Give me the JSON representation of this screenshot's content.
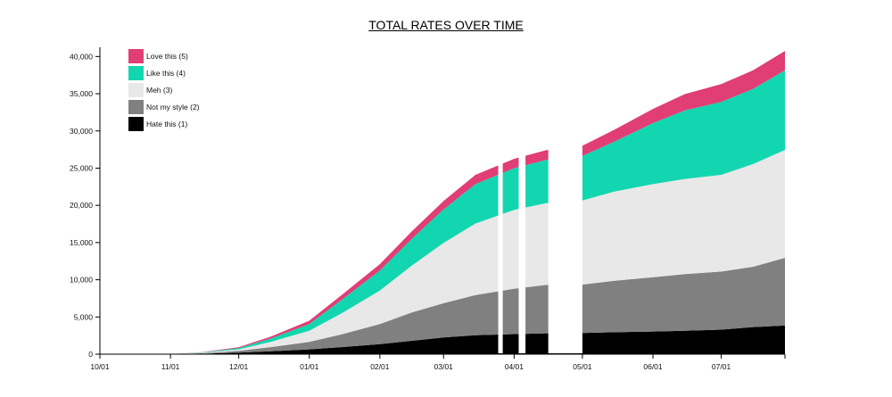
{
  "chart_data": {
    "type": "area",
    "title": "TOTAL RATES OVER TIME",
    "xlabel": "",
    "ylabel": "",
    "stacked": true,
    "cumulative": true,
    "x_ticks": [
      "10/01",
      "11/01",
      "12/01",
      "01/01",
      "02/01",
      "03/01",
      "04/01",
      "05/01",
      "06/01",
      "07/01"
    ],
    "y_ticks": [
      "0",
      "5,000",
      "10,000",
      "15,000",
      "20,000",
      "25,000",
      "30,000",
      "35,000",
      "40,000"
    ],
    "ylim": [
      0,
      41000
    ],
    "grid": false,
    "legend_position": "top-left",
    "x": [
      "10/01",
      "11/01",
      "11/15",
      "12/01",
      "12/15",
      "01/01",
      "01/15",
      "02/01",
      "02/15",
      "03/01",
      "03/15",
      "04/01",
      "04/15",
      "05/01",
      "05/15",
      "06/01",
      "06/15",
      "07/01",
      "07/15",
      "07/29"
    ],
    "series": [
      {
        "name": "Hate this (1)",
        "color": "#000000",
        "values": [
          0,
          0,
          60,
          200,
          400,
          650,
          950,
          1350,
          1800,
          2250,
          2550,
          2700,
          2800,
          2850,
          2950,
          3050,
          3150,
          3300,
          3650,
          3850
        ]
      },
      {
        "name": "Not my style (2)",
        "color": "#808080",
        "values": [
          0,
          0,
          60,
          250,
          550,
          1000,
          1700,
          2700,
          3800,
          4600,
          5400,
          6100,
          6500,
          6500,
          6900,
          7300,
          7600,
          7800,
          8100,
          9100
        ]
      },
      {
        "name": "Meh (3)",
        "color": "#e8e8e8",
        "values": [
          0,
          0,
          70,
          200,
          700,
          1500,
          2800,
          4500,
          6300,
          8100,
          9600,
          10600,
          11000,
          11300,
          12000,
          12500,
          12800,
          13000,
          13800,
          14500
        ]
      },
      {
        "name": "Like this (4)",
        "color": "#12d6b0",
        "values": [
          0,
          0,
          50,
          180,
          450,
          900,
          1800,
          2700,
          3600,
          4500,
          5300,
          5600,
          5800,
          6000,
          6700,
          8200,
          9200,
          9800,
          10100,
          10700
        ]
      },
      {
        "name": "Love this (5)",
        "color": "#e03e74",
        "values": [
          0,
          0,
          40,
          120,
          250,
          450,
          650,
          850,
          1000,
          1150,
          1250,
          1250,
          1300,
          1350,
          1600,
          1900,
          2200,
          2400,
          2500,
          2600
        ]
      }
    ],
    "gaps": [
      [
        "03/25",
        "03/27"
      ],
      [
        "04/03",
        "04/06"
      ],
      [
        "04/16",
        "05/01"
      ]
    ]
  }
}
